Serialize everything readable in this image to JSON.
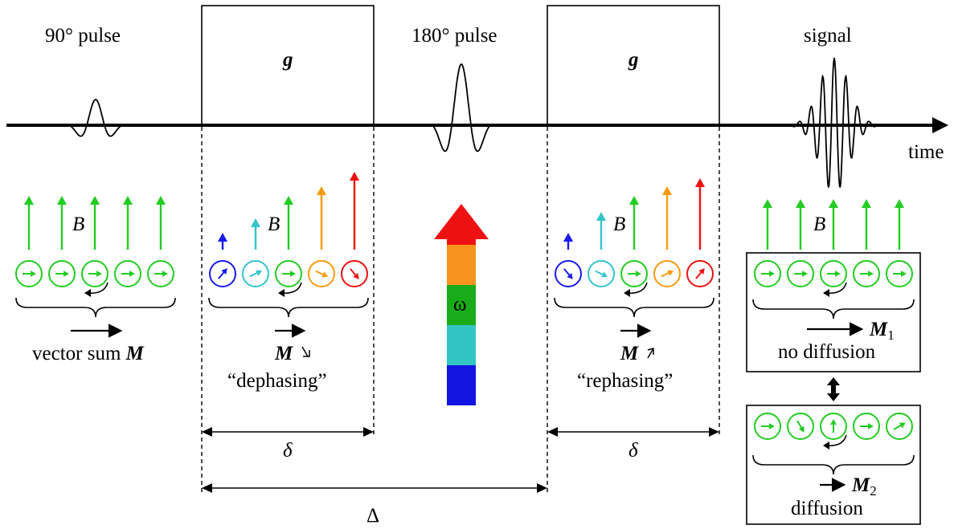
{
  "labels": {
    "pulse90": "90° pulse",
    "pulse180": "180° pulse",
    "signal": "signal",
    "time": "time",
    "gradient": "g",
    "field": "B",
    "omega": "ω",
    "vector_sum": "vector sum M",
    "dephasing_M": "M",
    "dephasing": "“dephasing”",
    "rephasing_M": "M",
    "rephasing": "“rephasing”",
    "m1": "M",
    "m1_sub": "1",
    "no_diffusion": "no diffusion",
    "m2": "M",
    "m2_sub": "2",
    "diffusion": "diffusion",
    "delta_small": "δ",
    "delta_big": "Δ"
  },
  "colors": {
    "green": "#22cc22",
    "blue": "#1a1aee",
    "cyan": "#33c4cc",
    "orange": "#f79a0f",
    "red": "#ee1111",
    "omega_band_orange": "#f7941d",
    "omega_band_green": "#1aab1a",
    "omega_band_cyan": "#33c4c4",
    "omega_band_blue": "#1414e0"
  },
  "spin_groups": [
    {
      "name": "spins-90-pulse",
      "spin_colors": [
        "green",
        "green",
        "green",
        "green",
        "green"
      ],
      "field_strength": [
        "equal",
        "equal",
        "equal",
        "equal",
        "equal"
      ]
    },
    {
      "name": "spins-dephasing",
      "spin_colors": [
        "blue",
        "cyan",
        "green",
        "orange",
        "red"
      ],
      "field_strength": [
        "weakest",
        "weak",
        "medium",
        "strong",
        "strongest"
      ]
    },
    {
      "name": "spins-rephasing",
      "spin_colors": [
        "blue",
        "cyan",
        "green",
        "orange",
        "red"
      ],
      "field_strength": [
        "weakest",
        "weak",
        "medium",
        "strong",
        "strongest"
      ]
    },
    {
      "name": "spins-no-diffusion",
      "spin_colors": [
        "green",
        "green",
        "green",
        "green",
        "green"
      ],
      "field_strength": [
        "equal",
        "equal",
        "equal",
        "equal",
        "equal"
      ]
    },
    {
      "name": "spins-diffusion",
      "spin_colors": [
        "green",
        "green",
        "green",
        "green",
        "green"
      ],
      "field_strength": []
    }
  ]
}
